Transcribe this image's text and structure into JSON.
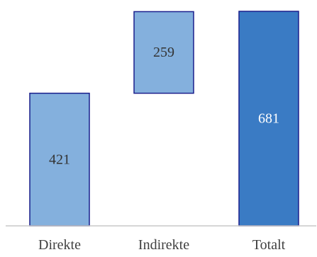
{
  "chart_data": {
    "type": "bar",
    "subtype": "waterfall",
    "categories": [
      "Direkte",
      "Indirekte",
      "Totalt"
    ],
    "bars": [
      {
        "category": "Direkte",
        "start": 0,
        "end": 421,
        "label": "421",
        "kind": "increment",
        "color": "#84b0dd",
        "label_color": "#333333"
      },
      {
        "category": "Indirekte",
        "start": 421,
        "end": 680,
        "label": "259",
        "kind": "increment",
        "color": "#84b0dd",
        "label_color": "#333333"
      },
      {
        "category": "Totalt",
        "start": 0,
        "end": 681,
        "label": "681",
        "kind": "total",
        "color": "#3a7bc4",
        "label_color": "#ffffff"
      }
    ],
    "ylim": [
      0,
      681
    ],
    "grid": false,
    "legend": "none",
    "title": "",
    "xlabel": "",
    "ylabel": "",
    "colors": {
      "border": "#1a1f8c",
      "axis": "#c8c8c8"
    }
  }
}
